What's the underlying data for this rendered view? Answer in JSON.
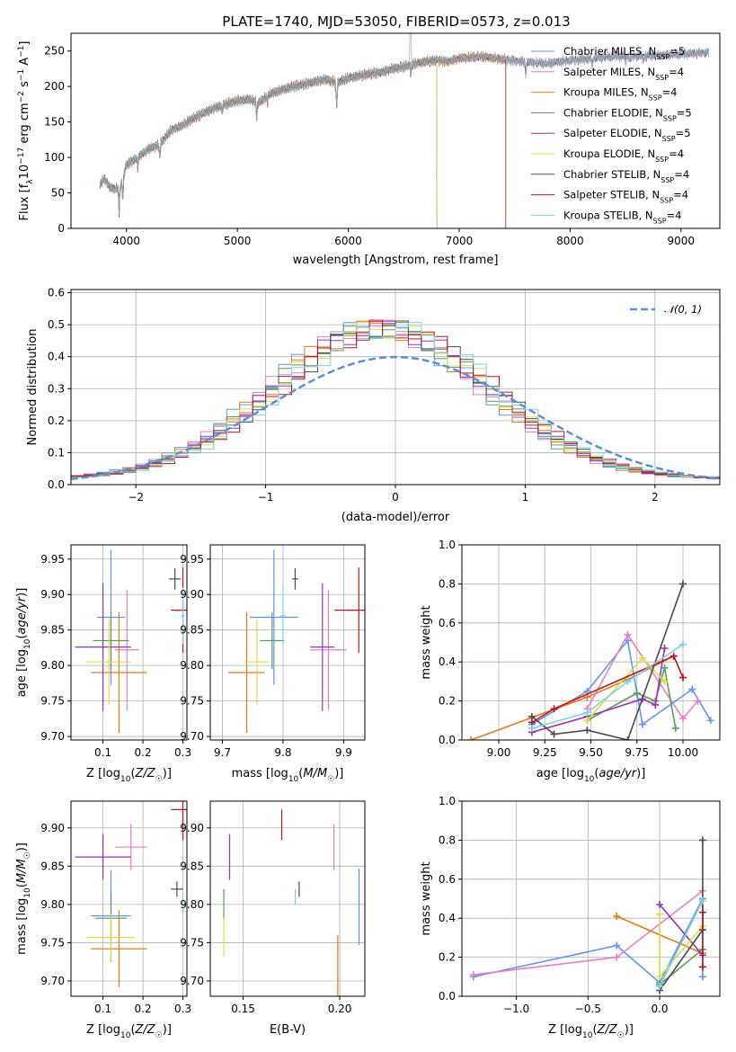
{
  "figure": {
    "title": "PLATE=1740, MJD=53050, FIBERID=0573, z=0.013"
  },
  "colors": {
    "Chabrier MILES": "#6495ed",
    "Salpeter MILES": "#e87fbf",
    "Kroupa MILES": "#e07b1a",
    "Chabrier ELODIE": "#5c9a5c",
    "Salpeter ELODIE": "#9b30b8",
    "Kroupa ELODIE": "#d6e045",
    "Chabrier STELIB": "#4a4a4a",
    "Salpeter STELIB": "#c0141c",
    "Kroupa STELIB": "#7ed0e0"
  },
  "chart_data": [
    {
      "id": "spectrum",
      "type": "line",
      "title": "PLATE=1740, MJD=53050, FIBERID=0573, z=0.013",
      "xlabel": "wavelength [Angstrom, rest frame]",
      "ylabel": "Flux [f_λ 10^-17 erg cm^-2 s^-1 A^-1]",
      "xlim": [
        3500,
        9350
      ],
      "ylim": [
        0,
        275
      ],
      "xticks": [
        4000,
        5000,
        6000,
        7000,
        8000,
        9000
      ],
      "yticks": [
        0,
        50,
        100,
        150,
        200,
        250
      ],
      "grid": false,
      "legend_position": "upper-right",
      "legend": [
        {
          "name": "Chabrier MILES",
          "nssp": "5"
        },
        {
          "name": "Salpeter MILES",
          "nssp": "4"
        },
        {
          "name": "Kroupa MILES",
          "nssp": "4"
        },
        {
          "name": "Chabrier ELODIE",
          "nssp": "5"
        },
        {
          "name": "Salpeter ELODIE",
          "nssp": "5"
        },
        {
          "name": "Kroupa ELODIE",
          "nssp": "4"
        },
        {
          "name": "Chabrier STELIB",
          "nssp": "4"
        },
        {
          "name": "Salpeter STELIB",
          "nssp": "4"
        },
        {
          "name": "Kroupa STELIB",
          "nssp": "4"
        }
      ],
      "continuum_x": [
        3750,
        3800,
        3850,
        3900,
        3950,
        4000,
        4100,
        4200,
        4300,
        4400,
        4500,
        4600,
        4700,
        4800,
        4900,
        5000,
        5100,
        5200,
        5300,
        5400,
        5500,
        5600,
        5700,
        5800,
        5900,
        6000,
        6100,
        6200,
        6300,
        6400,
        6500,
        6600,
        6700,
        6800,
        6900,
        7000,
        7200,
        7400,
        7600,
        7800,
        8000,
        8200,
        8400,
        8600,
        8800,
        9000,
        9200
      ],
      "continuum_y": [
        60,
        70,
        58,
        55,
        60,
        90,
        100,
        112,
        118,
        138,
        145,
        155,
        163,
        170,
        175,
        180,
        182,
        178,
        190,
        195,
        200,
        203,
        207,
        210,
        205,
        212,
        215,
        218,
        220,
        225,
        228,
        232,
        235,
        237,
        235,
        240,
        242,
        238,
        235,
        232,
        237,
        240,
        242,
        243,
        244,
        245,
        248
      ],
      "model_end_wavelength": {
        "Kroupa MILES": 7420,
        "Salpeter STELIB": 7420,
        "Kroupa ELODIE": 6800,
        "Chabrier ELODIE": 6800,
        "Salpeter ELODIE": 6800
      }
    },
    {
      "id": "residuals",
      "type": "histogram",
      "xlabel": "(data-model)/error",
      "ylabel": "Normed distribution",
      "xlim": [
        -2.5,
        2.5
      ],
      "ylim": [
        0,
        0.61
      ],
      "xticks": [
        -2,
        -1,
        0,
        1,
        2
      ],
      "yticks": [
        0.0,
        0.1,
        0.2,
        0.3,
        0.4,
        0.5,
        0.6
      ],
      "grid": true,
      "legend_position": "upper-right",
      "reference_curve": {
        "name": "𝒩(0, 1)",
        "mean": 0,
        "sigma": 1,
        "color": "#5b8fdc"
      },
      "bin_width": 0.1,
      "residual_center": -0.1,
      "residual_sigma": 0.82,
      "residual_peak": 0.47
    },
    {
      "id": "age-vs-Z",
      "type": "scatter",
      "xlabel": "Z [log10(Z/Z☉)]",
      "ylabel": "age  [log10(age/yr)]",
      "xlim": [
        0.02,
        0.31
      ],
      "ylim": [
        9.695,
        9.97
      ],
      "xticks": [
        0.1,
        0.2,
        0.3
      ],
      "yticks": [
        9.7,
        9.75,
        9.8,
        9.85,
        9.9,
        9.95
      ],
      "grid": true,
      "points": [
        {
          "series": "Chabrier MILES",
          "x": 0.12,
          "y": 9.868,
          "xerr": 0.035,
          "yerr": 0.095
        },
        {
          "series": "Salpeter MILES",
          "x": 0.16,
          "y": 9.822,
          "xerr": 0.03,
          "yerr": 0.085
        },
        {
          "series": "Kroupa MILES",
          "x": 0.14,
          "y": 9.79,
          "xerr": 0.07,
          "yerr": 0.085
        },
        {
          "series": "Chabrier ELODIE",
          "x": 0.12,
          "y": 9.835,
          "xerr": 0.045,
          "yerr": 0.04
        },
        {
          "series": "Salpeter ELODIE",
          "x": 0.1,
          "y": 9.826,
          "xerr": 0.07,
          "yerr": 0.09
        },
        {
          "series": "Kroupa ELODIE",
          "x": 0.115,
          "y": 9.805,
          "xerr": 0.055,
          "yerr": 0.06
        },
        {
          "series": "Chabrier STELIB",
          "x": 0.28,
          "y": 9.922,
          "xerr": 0.015,
          "yerr": 0.015
        },
        {
          "series": "Salpeter STELIB",
          "x": 0.3,
          "y": 9.878,
          "xerr": 0.03,
          "yerr": 0.06
        },
        {
          "series": "Kroupa STELIB",
          "x": 0.3,
          "y": 9.87,
          "xerr": 0.005,
          "yerr": 0.04
        }
      ]
    },
    {
      "id": "age-vs-mass",
      "type": "scatter",
      "xlabel": "mass [log10(M/M☉)]",
      "ylabel": "",
      "xlim": [
        9.68,
        9.935
      ],
      "ylim": [
        9.695,
        9.97
      ],
      "xticks": [
        9.7,
        9.8,
        9.9
      ],
      "yticks": [
        9.7,
        9.75,
        9.8,
        9.85,
        9.9,
        9.95
      ],
      "grid": true,
      "points": [
        {
          "series": "Chabrier MILES",
          "x": 9.785,
          "y": 9.868,
          "xerr": 0.04,
          "yerr": 0.095
        },
        {
          "series": "Salpeter MILES",
          "x": 9.875,
          "y": 9.822,
          "xerr": 0.03,
          "yerr": 0.085
        },
        {
          "series": "Kroupa MILES",
          "x": 9.74,
          "y": 9.79,
          "xerr": 0.03,
          "yerr": 0.085
        },
        {
          "series": "Chabrier ELODIE",
          "x": 9.782,
          "y": 9.835,
          "xerr": 0.02,
          "yerr": 0.04
        },
        {
          "series": "Salpeter ELODIE",
          "x": 9.865,
          "y": 9.826,
          "xerr": 0.02,
          "yerr": 0.09
        },
        {
          "series": "Kroupa ELODIE",
          "x": 9.757,
          "y": 9.805,
          "xerr": 0.02,
          "yerr": 0.06
        },
        {
          "series": "Chabrier STELIB",
          "x": 9.82,
          "y": 9.922,
          "xerr": 0.005,
          "yerr": 0.015
        },
        {
          "series": "Salpeter STELIB",
          "x": 9.925,
          "y": 9.878,
          "xerr": 0.04,
          "yerr": 0.06
        },
        {
          "series": "Kroupa STELIB",
          "x": 9.8,
          "y": 9.87,
          "xerr": 0.005,
          "yerr": 0.04
        }
      ]
    },
    {
      "id": "mass-weight-vs-age",
      "type": "line",
      "xlabel": "age  [log10(age/yr)]",
      "ylabel": "mass weight",
      "xlim": [
        8.8,
        10.2
      ],
      "ylim": [
        0,
        1
      ],
      "xticks": [
        9.0,
        9.25,
        9.5,
        9.75,
        10.0
      ],
      "xticklabels": [
        "9.00",
        "9.25",
        "9.50",
        "9.75",
        "10.00"
      ],
      "yticks": [
        0.0,
        0.2,
        0.4,
        0.6,
        0.8,
        1.0
      ],
      "grid": true,
      "series": [
        {
          "name": "Chabrier MILES",
          "x": [
            9.18,
            9.48,
            9.7,
            9.78,
            10.05,
            10.15
          ],
          "y": [
            0.08,
            0.25,
            0.51,
            0.08,
            0.26,
            0.1
          ]
        },
        {
          "name": "Salpeter MILES",
          "x": [
            9.48,
            9.7,
            10.0,
            10.08
          ],
          "y": [
            0.16,
            0.54,
            0.11,
            0.2
          ]
        },
        {
          "name": "Kroupa MILES",
          "x": [
            8.85,
            9.48,
            9.7,
            9.95
          ],
          "y": [
            0.0,
            0.22,
            0.31,
            0.43
          ]
        },
        {
          "name": "Chabrier ELODIE",
          "x": [
            9.48,
            9.75,
            9.85,
            9.9,
            9.96
          ],
          "y": [
            0.1,
            0.24,
            0.2,
            0.37,
            0.06
          ]
        },
        {
          "name": "Salpeter ELODIE",
          "x": [
            9.18,
            9.48,
            9.78,
            9.85,
            9.9
          ],
          "y": [
            0.04,
            0.12,
            0.21,
            0.18,
            0.47
          ]
        },
        {
          "name": "Kroupa ELODIE",
          "x": [
            9.48,
            9.78,
            9.9
          ],
          "y": [
            0.1,
            0.42,
            0.3
          ]
        },
        {
          "name": "Chabrier STELIB",
          "x": [
            9.18,
            9.3,
            9.48,
            9.7,
            10.0
          ],
          "y": [
            0.12,
            0.03,
            0.05,
            0.0,
            0.8
          ]
        },
        {
          "name": "Salpeter STELIB",
          "x": [
            9.18,
            9.3,
            9.95,
            10.0
          ],
          "y": [
            0.09,
            0.16,
            0.43,
            0.32
          ]
        },
        {
          "name": "Kroupa STELIB",
          "x": [
            9.18,
            9.48,
            9.7,
            10.0
          ],
          "y": [
            0.06,
            0.14,
            0.3,
            0.49
          ]
        }
      ]
    },
    {
      "id": "mass-vs-Z",
      "type": "scatter",
      "xlabel": "Z [log10(Z/Z☉)]",
      "ylabel": "mass [log10(M/M☉)]",
      "xlim": [
        0.02,
        0.31
      ],
      "ylim": [
        9.68,
        9.935
      ],
      "xticks": [
        0.1,
        0.2,
        0.3
      ],
      "yticks": [
        9.7,
        9.75,
        9.8,
        9.85,
        9.9
      ],
      "grid": true,
      "points": [
        {
          "series": "Chabrier MILES",
          "x": 0.12,
          "y": 9.785,
          "xerr": 0.05,
          "yerr": 0.06
        },
        {
          "series": "Salpeter MILES",
          "x": 0.17,
          "y": 9.875,
          "xerr": 0.04,
          "yerr": 0.03
        },
        {
          "series": "Kroupa MILES",
          "x": 0.14,
          "y": 9.742,
          "xerr": 0.07,
          "yerr": 0.05
        },
        {
          "series": "Chabrier ELODIE",
          "x": 0.12,
          "y": 9.782,
          "xerr": 0.04,
          "yerr": 0.035
        },
        {
          "series": "Salpeter ELODIE",
          "x": 0.1,
          "y": 9.862,
          "xerr": 0.07,
          "yerr": 0.03
        },
        {
          "series": "Kroupa ELODIE",
          "x": 0.12,
          "y": 9.757,
          "xerr": 0.06,
          "yerr": 0.03
        },
        {
          "series": "Chabrier STELIB",
          "x": 0.285,
          "y": 9.82,
          "xerr": 0.015,
          "yerr": 0.01
        },
        {
          "series": "Salpeter STELIB",
          "x": 0.3,
          "y": 9.924,
          "xerr": 0.03,
          "yerr": 0.04
        },
        {
          "series": "Kroupa STELIB",
          "x": 0.3,
          "y": 9.8,
          "xerr": 0.005,
          "yerr": 0.01
        }
      ]
    },
    {
      "id": "mass-vs-EBV",
      "type": "scatter",
      "xlabel": "E(B-V)",
      "ylabel": "",
      "xlim": [
        0.133,
        0.213
      ],
      "ylim": [
        9.68,
        9.935
      ],
      "xticks": [
        0.15,
        0.2
      ],
      "yticks": [
        9.7,
        9.75,
        9.8,
        9.85,
        9.9
      ],
      "grid": true,
      "points": [
        {
          "series": "Chabrier MILES",
          "x": 0.21,
          "y": 9.797,
          "xerr": 0,
          "yerr": 0.05
        },
        {
          "series": "Salpeter MILES",
          "x": 0.197,
          "y": 9.875,
          "xerr": 0,
          "yerr": 0.03
        },
        {
          "series": "Kroupa MILES",
          "x": 0.199,
          "y": 9.72,
          "xerr": 0,
          "yerr": 0.04
        },
        {
          "series": "Chabrier ELODIE",
          "x": 0.14,
          "y": 9.8,
          "xerr": 0,
          "yerr": 0.02
        },
        {
          "series": "Salpeter ELODIE",
          "x": 0.143,
          "y": 9.862,
          "xerr": 0,
          "yerr": 0.03
        },
        {
          "series": "Kroupa ELODIE",
          "x": 0.14,
          "y": 9.757,
          "xerr": 0,
          "yerr": 0.025
        },
        {
          "series": "Chabrier STELIB",
          "x": 0.179,
          "y": 9.82,
          "xerr": 0,
          "yerr": 0.01
        },
        {
          "series": "Salpeter STELIB",
          "x": 0.17,
          "y": 9.904,
          "xerr": 0,
          "yerr": 0.02
        },
        {
          "series": "Kroupa STELIB",
          "x": 0.177,
          "y": 9.81,
          "xerr": 0,
          "yerr": 0.01
        }
      ]
    },
    {
      "id": "mass-weight-vs-Z",
      "type": "line",
      "xlabel": "Z [log10(Z/Z☉)]",
      "ylabel": "mass weight",
      "xlim": [
        -1.38,
        0.42
      ],
      "ylim": [
        0,
        1
      ],
      "xticks": [
        -1.0,
        -0.5,
        0.0
      ],
      "xticklabels": [
        "−1.0",
        "−0.5",
        "0.0"
      ],
      "yticks": [
        0.0,
        0.2,
        0.4,
        0.6,
        0.8,
        1.0
      ],
      "grid": true,
      "series": [
        {
          "name": "Chabrier MILES",
          "x": [
            -1.3,
            -0.3,
            0.0,
            0.3,
            0.3
          ],
          "y": [
            0.1,
            0.26,
            0.07,
            0.5,
            0.1
          ]
        },
        {
          "name": "Salpeter MILES",
          "x": [
            -1.3,
            -0.3,
            0.3
          ],
          "y": [
            0.11,
            0.2,
            0.54
          ]
        },
        {
          "name": "Kroupa MILES",
          "x": [
            -0.3,
            0.3
          ],
          "y": [
            0.41,
            0.22
          ]
        },
        {
          "name": "Chabrier ELODIE",
          "x": [
            0.0,
            0.3
          ],
          "y": [
            0.06,
            0.24
          ]
        },
        {
          "name": "Salpeter ELODIE",
          "x": [
            0.0,
            0.3
          ],
          "y": [
            0.47,
            0.21
          ]
        },
        {
          "name": "Kroupa ELODIE",
          "x": [
            0.0,
            0.0,
            0.3
          ],
          "y": [
            0.42,
            0.1,
            0.36
          ]
        },
        {
          "name": "Chabrier STELIB",
          "x": [
            0.0,
            0.3,
            0.3
          ],
          "y": [
            0.03,
            0.34,
            0.8
          ]
        },
        {
          "name": "Salpeter STELIB",
          "x": [
            0.3,
            0.3
          ],
          "y": [
            0.15,
            0.43
          ]
        },
        {
          "name": "Kroupa STELIB",
          "x": [
            0.0,
            0.3
          ],
          "y": [
            0.05,
            0.49
          ]
        }
      ]
    }
  ]
}
